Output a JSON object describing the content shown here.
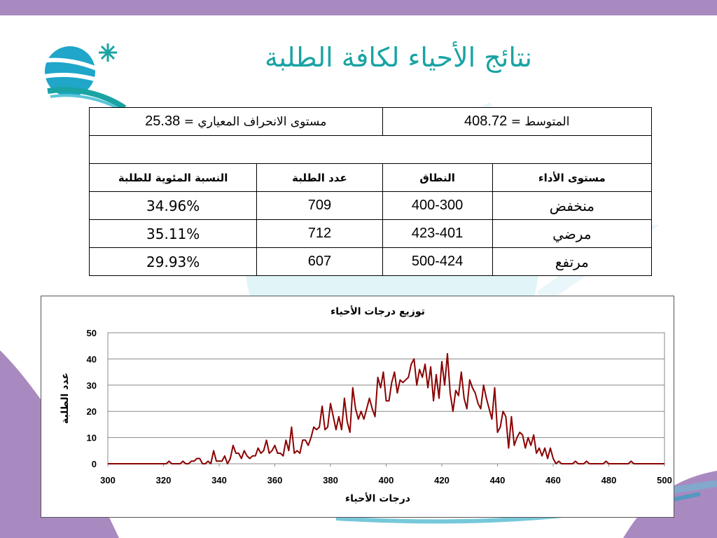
{
  "slide": {
    "title": "نتائج الأحياء لكافة الطلبة",
    "colors": {
      "band": "#a98ac0",
      "title": "#1aa3a3",
      "line": "#8b0000"
    }
  },
  "stats_table": {
    "std_label": "مستوى الانحراف المعياري =",
    "std_value": "25.38",
    "mean_label": "المتوسط =",
    "mean_value": "408.72",
    "headers": [
      "مستوى الأداء",
      "النطاق",
      "عدد الطلبة",
      "النسبة المئوية للطلبة"
    ],
    "rows": [
      {
        "level": "منخفض",
        "range": "400-300",
        "count": "709",
        "percent": "34.96%"
      },
      {
        "level": "مرضي",
        "range": "423-401",
        "count": "712",
        "percent": "35.11%"
      },
      {
        "level": "مرتفع",
        "range": "500-424",
        "count": "607",
        "percent": "29.93%"
      }
    ]
  },
  "chart_data": {
    "type": "line",
    "title": "توزيع درجات الأحياء",
    "xlabel": "درجات الأحياء",
    "ylabel": "عدد الطلبة",
    "xlim": [
      300,
      500
    ],
    "ylim": [
      0,
      50
    ],
    "xticks": [
      "300",
      "320",
      "340",
      "360",
      "380",
      "400",
      "420",
      "440",
      "460",
      "480",
      "500"
    ],
    "yticks": [
      "0",
      "10",
      "20",
      "30",
      "40",
      "50"
    ],
    "grid": true,
    "legend": "none",
    "series": [
      {
        "x": [
          300,
          301,
          302,
          303,
          304,
          305,
          306,
          307,
          308,
          309,
          310,
          311,
          312,
          313,
          314,
          315,
          316,
          317,
          318,
          319,
          320,
          321,
          322,
          323,
          324,
          325,
          326,
          327,
          328,
          329,
          330,
          331,
          332,
          333,
          334,
          335,
          336,
          337,
          338,
          339,
          340,
          341,
          342,
          343,
          344,
          345,
          346,
          347,
          348,
          349,
          350,
          351,
          352,
          353,
          354,
          355,
          356,
          357,
          358,
          359,
          360,
          361,
          362,
          363,
          364,
          365,
          366,
          367,
          368,
          369,
          370,
          371,
          372,
          373,
          374,
          375,
          376,
          377,
          378,
          379,
          380,
          381,
          382,
          383,
          384,
          385,
          386,
          387,
          388,
          389,
          390,
          391,
          392,
          393,
          394,
          395,
          396,
          397,
          398,
          399,
          400,
          401,
          402,
          403,
          404,
          405,
          406,
          407,
          408,
          409,
          410,
          411,
          412,
          413,
          414,
          415,
          416,
          417,
          418,
          419,
          420,
          421,
          422,
          423,
          424,
          425,
          426,
          427,
          428,
          429,
          430,
          431,
          432,
          433,
          434,
          435,
          436,
          437,
          438,
          439,
          440,
          441,
          442,
          443,
          444,
          445,
          446,
          447,
          448,
          449,
          450,
          451,
          452,
          453,
          454,
          455,
          456,
          457,
          458,
          459,
          460,
          461,
          462,
          463,
          464,
          465,
          466,
          467,
          468,
          469,
          470,
          471,
          472,
          473,
          474,
          475,
          476,
          477,
          478,
          479,
          480,
          481,
          482,
          483,
          484,
          485,
          486,
          487,
          488,
          489,
          490,
          491,
          492,
          493,
          494,
          495,
          496,
          497,
          498,
          499,
          500
        ],
        "y": [
          0,
          0,
          0,
          0,
          0,
          0,
          0,
          0,
          0,
          0,
          0,
          0,
          0,
          0,
          0,
          0,
          0,
          0,
          0,
          0,
          0,
          0,
          1,
          0,
          0,
          0,
          0,
          1,
          0,
          0,
          1,
          1,
          2,
          2,
          0,
          0,
          1,
          0,
          5,
          1,
          1,
          1,
          3,
          0,
          2,
          7,
          4,
          4,
          2,
          5,
          3,
          2,
          3,
          3,
          6,
          4,
          5,
          9,
          4,
          5,
          7,
          4,
          4,
          3,
          9,
          5,
          14,
          4,
          5,
          4,
          9,
          9,
          7,
          10,
          14,
          13,
          14,
          22,
          13,
          14,
          23,
          18,
          13,
          18,
          13,
          25,
          16,
          12,
          29,
          21,
          17,
          20,
          17,
          21,
          25,
          21,
          18,
          33,
          29,
          35,
          24,
          24,
          31,
          35,
          27,
          32,
          31,
          32,
          33,
          38,
          40,
          30,
          36,
          33,
          38,
          29,
          37,
          24,
          34,
          25,
          39,
          30,
          42,
          27,
          20,
          28,
          26,
          35,
          25,
          21,
          32,
          29,
          27,
          23,
          21,
          30,
          25,
          21,
          17,
          29,
          12,
          14,
          20,
          18,
          6,
          18,
          7,
          10,
          12,
          11,
          6,
          10,
          7,
          11,
          4,
          6,
          3,
          6,
          2,
          6,
          2,
          0,
          1,
          0,
          0,
          0,
          0,
          0,
          1,
          0,
          0,
          0,
          1,
          0,
          0,
          0,
          0,
          0,
          0,
          1,
          0,
          0,
          0,
          0,
          0,
          0,
          0,
          0,
          1,
          0,
          0,
          0,
          0,
          0,
          0,
          0,
          0,
          0,
          0,
          0,
          0
        ]
      }
    ]
  }
}
